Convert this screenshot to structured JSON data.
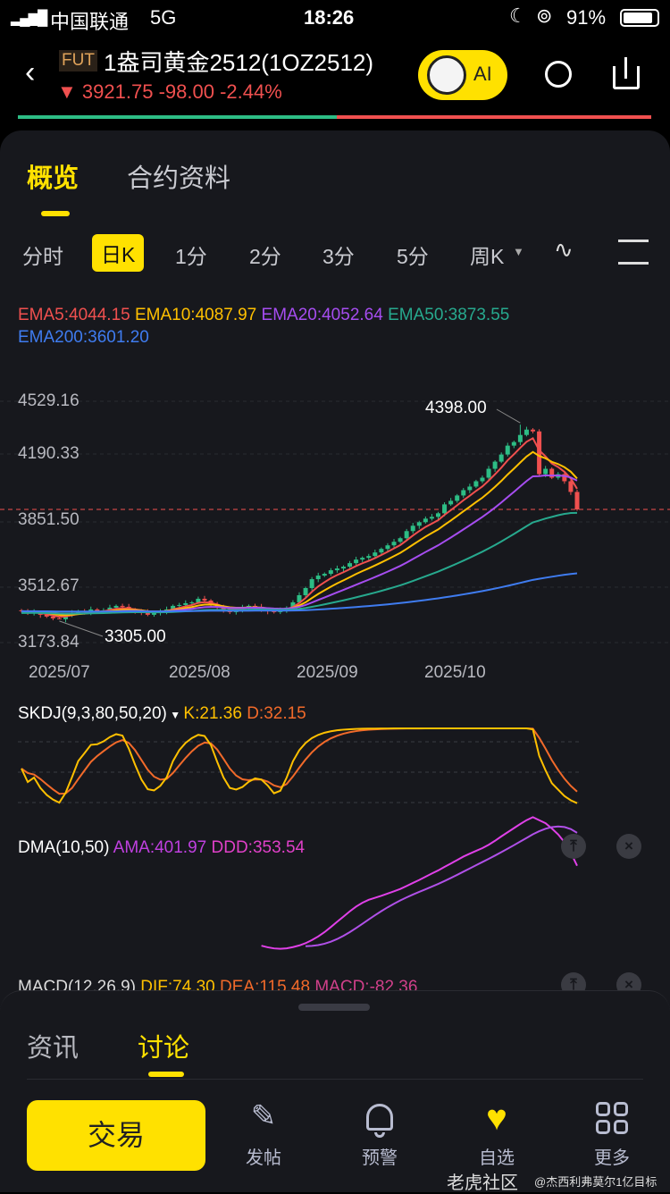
{
  "status": {
    "carrier": "中国联通",
    "network": "5G",
    "time": "18:26",
    "battery": "91%"
  },
  "header": {
    "badge": "FUT",
    "title": "1盎司黄金2512(1OZ2512)",
    "arrow": "▼",
    "price": "3921.75",
    "change": "-98.00",
    "pct": "-2.44%",
    "ai": "AI"
  },
  "tabs": {
    "overview": "概览",
    "contract": "合约资料"
  },
  "timeframes": [
    "分时",
    "日K",
    "1分",
    "2分",
    "3分",
    "5分",
    "周K"
  ],
  "ema": {
    "ema5": "EMA5:4044.15",
    "ema10": "EMA10:4087.97",
    "ema20": "EMA20:4052.64",
    "ema50": "EMA50:3873.55",
    "ema200": "EMA200:3601.20"
  },
  "yaxis": [
    "4529.16",
    "4190.33",
    "3851.50",
    "3512.67",
    "3173.84"
  ],
  "xaxis": [
    "2025/07",
    "2025/08",
    "2025/09",
    "2025/10"
  ],
  "annotations": {
    "high": "4398.00",
    "low": "3305.00"
  },
  "skdj": {
    "name": "SKDJ(9,3,80,50,20)",
    "k": "K:21.36",
    "d": "D:32.15"
  },
  "dma": {
    "name": "DMA(10,50)",
    "ama": "AMA:401.97",
    "ddd": "DDD:353.54"
  },
  "macd": {
    "name": "MACD(12,26,9)",
    "dif": "DIF:74.30",
    "dea": "DEA:115.48",
    "macd": "MACD:-82.36"
  },
  "sheet": {
    "news": "资讯",
    "discuss": "讨论"
  },
  "nav": {
    "trade": "交易",
    "post": "发帖",
    "alert": "预警",
    "watch": "自选",
    "more": "更多"
  },
  "watermark": {
    "brand": "老虎社区",
    "user": "@杰西利弗莫尔1亿目标"
  },
  "colors": {
    "up": "#2dbd85",
    "down": "#f0504f",
    "accent": "#ffe100",
    "ema5": "#f0504f",
    "ema10": "#ffc000",
    "ema20": "#a64df0",
    "ema50": "#27a98e",
    "ema200": "#3f7cf0"
  },
  "chart_data": {
    "type": "candlestick",
    "y_range": [
      3173.84,
      4529.16
    ],
    "last": 3921.75,
    "high": 4398.0,
    "low": 3305.0,
    "closes": [
      3350,
      3340,
      3345,
      3330,
      3320,
      3310,
      3305,
      3325,
      3340,
      3350,
      3345,
      3360,
      3350,
      3355,
      3370,
      3380,
      3375,
      3360,
      3350,
      3345,
      3330,
      3340,
      3350,
      3360,
      3380,
      3385,
      3395,
      3400,
      3420,
      3410,
      3390,
      3370,
      3350,
      3345,
      3360,
      3370,
      3380,
      3375,
      3360,
      3350,
      3345,
      3355,
      3370,
      3400,
      3440,
      3480,
      3530,
      3550,
      3560,
      3580,
      3590,
      3600,
      3620,
      3640,
      3650,
      3660,
      3680,
      3700,
      3720,
      3740,
      3760,
      3800,
      3830,
      3850,
      3870,
      3880,
      3900,
      3950,
      3970,
      4000,
      4030,
      4050,
      4080,
      4100,
      4150,
      4190,
      4230,
      4280,
      4300,
      4340,
      4370,
      4360,
      4120,
      4150,
      4100,
      4120,
      4080,
      4020,
      3921.75
    ]
  }
}
